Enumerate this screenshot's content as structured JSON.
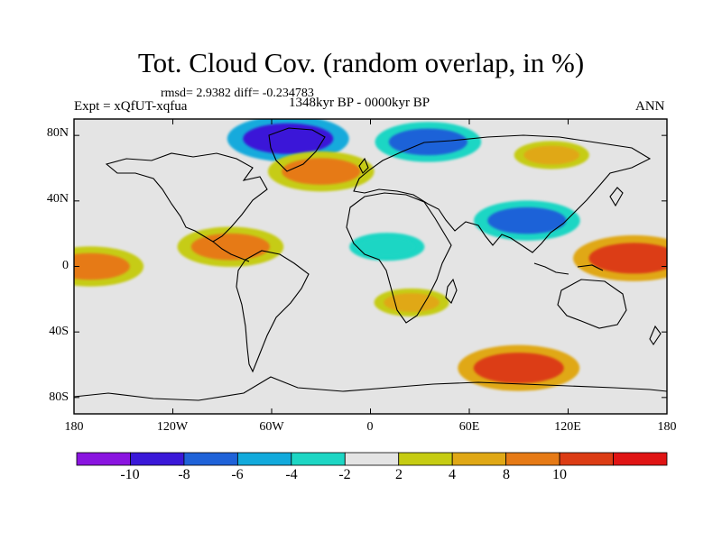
{
  "chart_data": {
    "type": "heatmap",
    "title": "Tot. Cloud Cov. (random overlap, in %)",
    "rmsd_label": "rmsd= 2.9382 diff= -0.234783",
    "experiment_label": "Expt = xQfUT-xqfua",
    "period_label": "1348kyr BP - 0000kyr BP",
    "season_label": "ANN",
    "lon_range": [
      -180,
      180
    ],
    "lat_range": [
      -90,
      90
    ],
    "y_ticks": [
      "80N",
      "40N",
      "0",
      "40S",
      "80S"
    ],
    "x_ticks": [
      "180",
      "120W",
      "60W",
      "0",
      "60E",
      "120E",
      "180"
    ],
    "colorbar_levels": [
      "-10",
      "-8",
      "-6",
      "-4",
      "-2",
      "2",
      "4",
      "8",
      "10"
    ],
    "colorbar_colors": [
      "#8a14e0",
      "#3a18d8",
      "#1f62d8",
      "#12aadc",
      "#1dd6c4",
      "#e4e4e4",
      "#c6cc12",
      "#e0a816",
      "#e67a16",
      "#dc3c14",
      "#e01414"
    ],
    "anomalies": [
      {
        "region": "Greenland / Arctic",
        "lon": -50,
        "lat": 78,
        "value": -10
      },
      {
        "region": "Barents Sea",
        "lon": 35,
        "lat": 76,
        "value": -8
      },
      {
        "region": "North Atlantic",
        "lon": -30,
        "lat": 58,
        "value": 8
      },
      {
        "region": "Siberia",
        "lon": 110,
        "lat": 68,
        "value": 4
      },
      {
        "region": "Sahel",
        "lon": 10,
        "lat": 12,
        "value": -4
      },
      {
        "region": "Tibet / China",
        "lon": 95,
        "lat": 28,
        "value": -8
      },
      {
        "region": "Central America",
        "lon": -85,
        "lat": 12,
        "value": 8
      },
      {
        "region": "Equatorial Pacific",
        "lon": -170,
        "lat": 0,
        "value": 8
      },
      {
        "region": "West Pacific",
        "lon": 160,
        "lat": 5,
        "value": 10
      },
      {
        "region": "Southern Africa",
        "lon": 25,
        "lat": -22,
        "value": 4
      },
      {
        "region": "Southern Ocean",
        "lon": 90,
        "lat": -62,
        "value": 10
      }
    ]
  }
}
